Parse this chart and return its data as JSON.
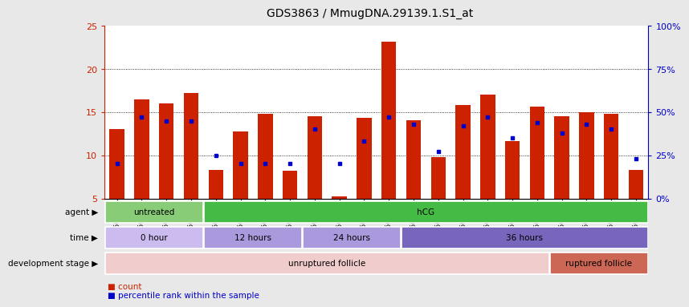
{
  "title": "GDS3863 / MmugDNA.29139.1.S1_at",
  "samples": [
    "GSM563219",
    "GSM563220",
    "GSM563221",
    "GSM563222",
    "GSM563223",
    "GSM563224",
    "GSM563225",
    "GSM563226",
    "GSM563227",
    "GSM563228",
    "GSM563229",
    "GSM563230",
    "GSM563231",
    "GSM563232",
    "GSM563233",
    "GSM563234",
    "GSM563235",
    "GSM563236",
    "GSM563237",
    "GSM563238",
    "GSM563239",
    "GSM563240"
  ],
  "counts": [
    13.0,
    16.5,
    16.0,
    17.2,
    8.3,
    12.8,
    14.8,
    8.2,
    14.5,
    5.2,
    14.3,
    23.2,
    14.1,
    9.8,
    15.8,
    17.0,
    11.6,
    15.6,
    14.5,
    15.0,
    14.8,
    8.3
  ],
  "pct_rank": [
    20,
    47,
    45,
    45,
    25,
    20,
    20,
    20,
    40,
    20,
    33,
    47,
    43,
    27,
    42,
    47,
    35,
    44,
    38,
    43,
    40,
    23
  ],
  "bar_color": "#cc2200",
  "dot_color": "#0000cc",
  "ylim_left": [
    5,
    25
  ],
  "ylim_right": [
    0,
    100
  ],
  "yticks_left": [
    5,
    10,
    15,
    20,
    25
  ],
  "yticks_right": [
    0,
    25,
    50,
    75,
    100
  ],
  "agent_groups": [
    {
      "label": "untreated",
      "start": 0,
      "end": 4,
      "color": "#88cc77"
    },
    {
      "label": "hCG",
      "start": 4,
      "end": 22,
      "color": "#44bb44"
    }
  ],
  "time_groups": [
    {
      "label": "0 hour",
      "start": 0,
      "end": 4,
      "color": "#ccbbee"
    },
    {
      "label": "12 hours",
      "start": 4,
      "end": 8,
      "color": "#aa99dd"
    },
    {
      "label": "24 hours",
      "start": 8,
      "end": 12,
      "color": "#aa99dd"
    },
    {
      "label": "36 hours",
      "start": 12,
      "end": 22,
      "color": "#7766bb"
    }
  ],
  "dev_groups": [
    {
      "label": "unruptured follicle",
      "start": 0,
      "end": 18,
      "color": "#f0cccc"
    },
    {
      "label": "ruptured follicle",
      "start": 18,
      "end": 22,
      "color": "#cc6655"
    }
  ],
  "bg_color": "#e8e8e8",
  "plot_bg": "#ffffff"
}
